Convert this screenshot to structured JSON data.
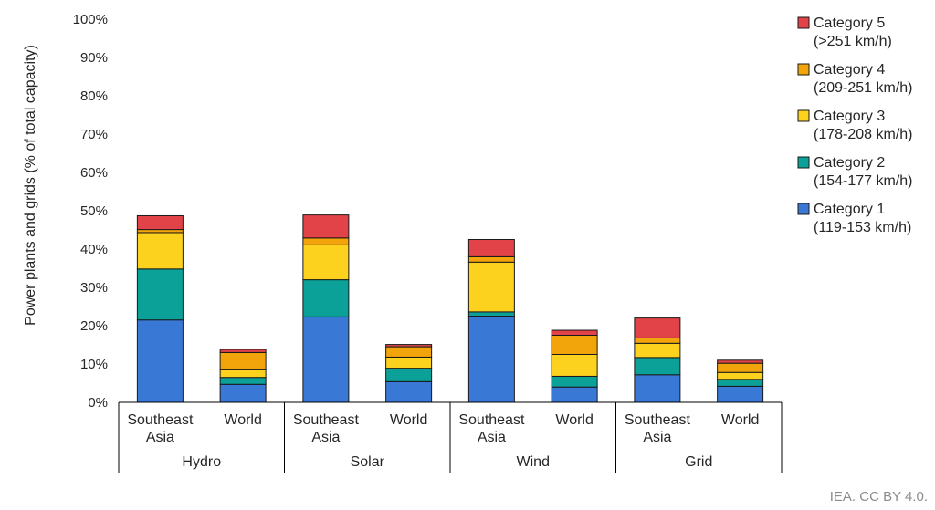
{
  "chart_data": {
    "type": "bar",
    "stacked": true,
    "ylabel": "Power plants and grids (% of total capacity)",
    "ylim": [
      0,
      100
    ],
    "yticks": [
      "0%",
      "10%",
      "20%",
      "30%",
      "40%",
      "50%",
      "60%",
      "70%",
      "80%",
      "90%",
      "100%"
    ],
    "groups": [
      {
        "label": "Hydro",
        "bars": [
          {
            "label": "Southeast Asia",
            "values": [
              21.5,
              13.3,
              9.5,
              0.8,
              3.6
            ]
          },
          {
            "label": "World",
            "values": [
              4.7,
              1.8,
              2.0,
              4.5,
              0.8
            ]
          }
        ]
      },
      {
        "label": "Solar",
        "bars": [
          {
            "label": "Southeast Asia",
            "values": [
              22.3,
              9.7,
              9.1,
              1.8,
              6.0
            ]
          },
          {
            "label": "World",
            "values": [
              5.4,
              3.5,
              2.9,
              2.7,
              0.6
            ]
          }
        ]
      },
      {
        "label": "Wind",
        "bars": [
          {
            "label": "Southeast Asia",
            "values": [
              22.5,
              1.1,
              13.0,
              1.4,
              4.5
            ]
          },
          {
            "label": "World",
            "values": [
              4.0,
              2.8,
              5.7,
              5.0,
              1.3
            ]
          }
        ]
      },
      {
        "label": "Grid",
        "bars": [
          {
            "label": "Southeast Asia",
            "values": [
              7.2,
              4.5,
              3.7,
              1.4,
              5.2
            ]
          },
          {
            "label": "World",
            "values": [
              4.2,
              1.8,
              1.8,
              2.4,
              0.8
            ]
          }
        ]
      }
    ],
    "series": [
      {
        "name": "Category 1",
        "range": "(119-153 km/h)",
        "color": "#3a78d6"
      },
      {
        "name": "Category 2",
        "range": "(154-177 km/h)",
        "color": "#0ba198"
      },
      {
        "name": "Category 3",
        "range": "(178-208 km/h)",
        "color": "#fcd21f"
      },
      {
        "name": "Category 4",
        "range": "(209-251 km/h)",
        "color": "#f2a50b"
      },
      {
        "name": "Category 5",
        "range": "(>251 km/h)",
        "color": "#e14348"
      }
    ],
    "legend": "right",
    "grid": false
  },
  "source": "IEA. CC BY 4.0."
}
